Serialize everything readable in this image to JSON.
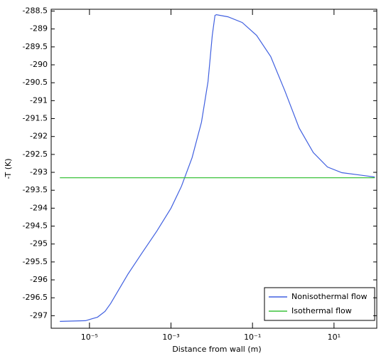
{
  "chart_data": {
    "type": "line",
    "x_label": "Distance from wall (m)",
    "y_label": "-T (K)",
    "log_x": true,
    "xlim": [
      1.15e-06,
      112
    ],
    "xticks": [
      {
        "value": 1e-05,
        "label": "10⁻⁵"
      },
      {
        "value": 0.001,
        "label": "10⁻³"
      },
      {
        "value": 0.1,
        "label": "10⁻¹"
      },
      {
        "value": 10,
        "label": "10¹"
      }
    ],
    "ylim": [
      -297.35,
      -288.45
    ],
    "yticks": [
      -288.5,
      -289,
      -289.5,
      -290,
      -290.5,
      -291,
      -291.5,
      -292,
      -292.5,
      -293,
      -293.5,
      -294,
      -294.5,
      -295,
      -295.5,
      -296,
      -296.5,
      -297
    ],
    "legend_position": "lower right",
    "series": [
      {
        "name": "Nonisothermal flow",
        "color": "#4060e0",
        "x": [
          1.88e-06,
          8e-06,
          1.58e-05,
          2.4e-05,
          3.3e-05,
          4.9e-05,
          8.9e-05,
          0.0002,
          0.00045,
          0.001,
          0.0018,
          0.0033,
          0.0056,
          0.0081,
          0.0103,
          0.012,
          0.013,
          0.025,
          0.056,
          0.126,
          0.28,
          0.62,
          1.39,
          3.1,
          6.9,
          15.5,
          100
        ],
        "values": [
          -297.16,
          -297.14,
          -297.04,
          -296.88,
          -296.66,
          -296.33,
          -295.83,
          -295.23,
          -294.64,
          -294.0,
          -293.39,
          -292.59,
          -291.6,
          -290.47,
          -289.18,
          -288.62,
          -288.6,
          -288.66,
          -288.82,
          -289.18,
          -289.77,
          -290.72,
          -291.76,
          -292.45,
          -292.85,
          -293.01,
          -293.13
        ]
      },
      {
        "name": "Isothermal flow",
        "color": "#3cc23c",
        "x": [
          1.88e-06,
          100
        ],
        "values": [
          -293.15,
          -293.15
        ]
      }
    ]
  }
}
